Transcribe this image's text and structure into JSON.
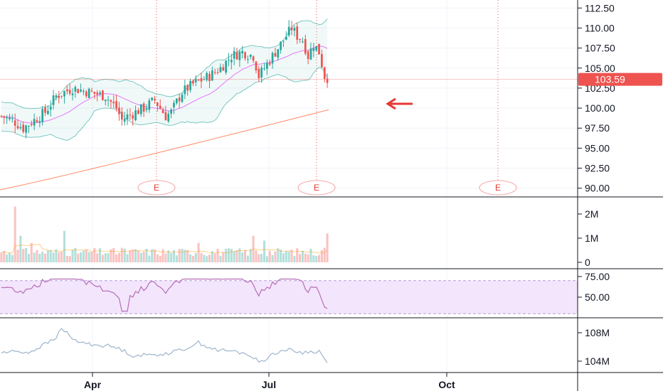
{
  "chart_data": [
    {
      "type": "candlestick",
      "panel": "price",
      "yticks": [
        "112.50",
        "110.00",
        "107.50",
        "105.00",
        "102.50",
        "100.00",
        "97.50",
        "95.00",
        "92.50",
        "90.00"
      ],
      "ylim": [
        89,
        113.5
      ],
      "last_price": "103.59",
      "last_price_value": 103.59,
      "earnings_marker_label": "E",
      "earnings_markers": [
        "May",
        "Jul",
        "Oct"
      ],
      "overlays": [
        "bollinger-bands",
        "moving-average",
        "long-moving-average"
      ],
      "grid": true,
      "colors": {
        "up": "#26a69a",
        "down": "#ef5350",
        "band": "#26a69a",
        "ma": "#e040fb",
        "long_ma": "#ff8a65",
        "price_tag": "#ef5350"
      }
    },
    {
      "type": "bar",
      "panel": "volume",
      "yticks": [
        "2M",
        "1M",
        "0"
      ],
      "ylim": [
        0,
        2.4
      ],
      "unit": "M"
    },
    {
      "type": "line",
      "panel": "rsi",
      "yticks": [
        "75.00",
        "50.00"
      ],
      "ylim": [
        30,
        78
      ],
      "band": [
        70,
        30
      ],
      "colors": {
        "line": "#b56fb5",
        "band_fill": "#f3e5fc",
        "band_border": "#b39ddb"
      }
    },
    {
      "type": "line",
      "panel": "obv",
      "yticks": [
        "108M",
        "104M"
      ],
      "ylim": [
        102.8,
        110.2
      ],
      "unit": "M",
      "colors": {
        "line": "#9eb4cc"
      }
    }
  ],
  "x_axis": {
    "labels": [
      "Apr",
      "Jul",
      "Oct"
    ]
  }
}
